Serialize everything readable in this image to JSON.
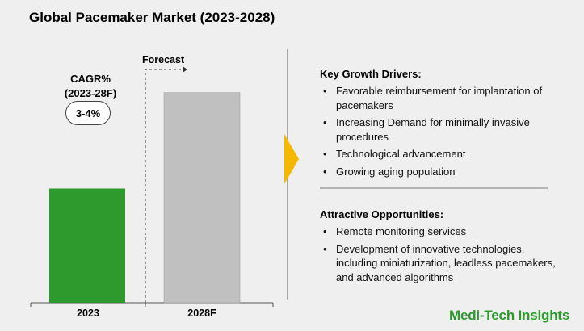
{
  "title": "Global Pacemaker Market (2023-2028)",
  "cagr": {
    "label_line1": "CAGR%",
    "label_line2": "(2023-28F)",
    "value": "3-4%"
  },
  "forecast_label": "Forecast",
  "chart_data": {
    "type": "bar",
    "categories": [
      "2023",
      "2028F"
    ],
    "values": [
      50,
      92
    ],
    "ylim": [
      0,
      100
    ],
    "colors": [
      "#2e9a2e",
      "#c0c0c0"
    ],
    "grid": false,
    "value_unit": "relative (unlabeled axis)"
  },
  "growth_drivers": {
    "heading": "Key Growth Drivers:",
    "items": [
      "Favorable reimbursement for implantation of pacemakers",
      "Increasing Demand for minimally invasive procedures",
      "Technological advancement",
      "Growing aging population"
    ]
  },
  "opportunities": {
    "heading": "Attractive Opportunities:",
    "items": [
      "Remote monitoring services",
      "Development of innovative technologies, including miniaturization, leadless pacemakers, and advanced algorithms"
    ]
  },
  "brand": "Medi-Tech Insights",
  "colors": {
    "accent_arrow": "#f5b800",
    "brand_green": "#2e9a2e"
  }
}
